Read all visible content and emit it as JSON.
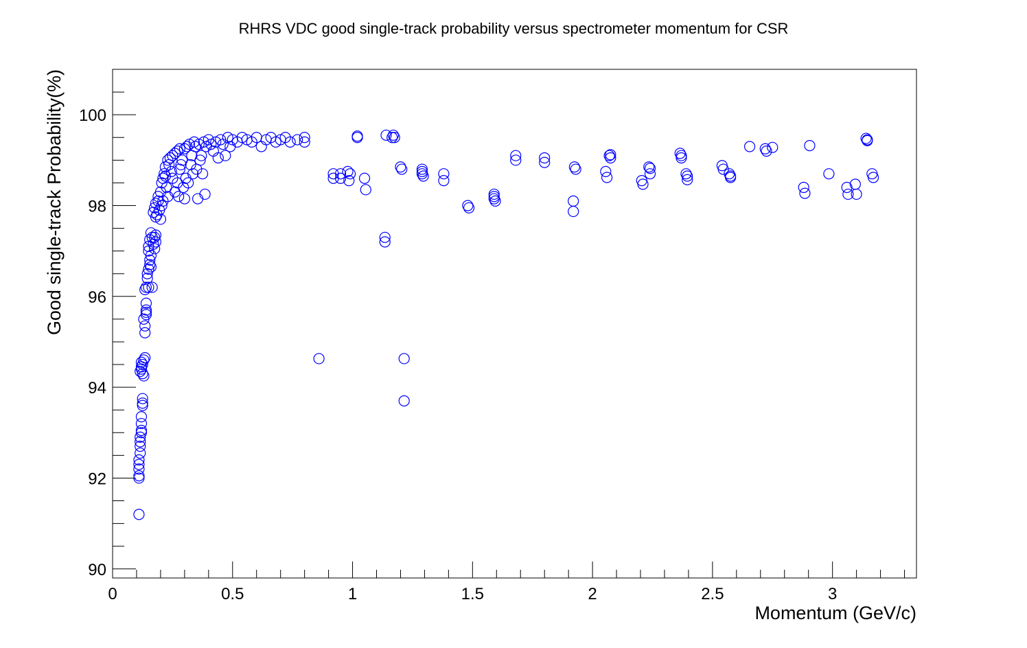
{
  "chart_data": {
    "type": "scatter",
    "title": "RHRS VDC good single-track probability versus spectrometer momentum for CSR",
    "xlabel": "Momentum (GeV/c)",
    "ylabel": "Good single-track Probability(%)",
    "xlim": [
      0,
      3.35
    ],
    "ylim": [
      89.8,
      101.0
    ],
    "x_ticks": [
      0,
      0.5,
      1,
      1.5,
      2,
      2.5,
      3
    ],
    "x_tick_labels": [
      "0",
      "0.5",
      "1",
      "1.5",
      "2",
      "2.5",
      "3"
    ],
    "y_ticks": [
      90,
      92,
      94,
      96,
      98,
      100
    ],
    "y_tick_labels": [
      "90",
      "92",
      "94",
      "96",
      "98",
      "100"
    ],
    "grid": false,
    "legend": "none",
    "marker": "open-circle",
    "color": "#0000ff",
    "points": [
      [
        0.11,
        91.2
      ],
      [
        0.11,
        92.0
      ],
      [
        0.11,
        92.05
      ],
      [
        0.11,
        92.2
      ],
      [
        0.11,
        92.3
      ],
      [
        0.11,
        92.4
      ],
      [
        0.115,
        92.55
      ],
      [
        0.115,
        92.7
      ],
      [
        0.115,
        92.8
      ],
      [
        0.115,
        92.9
      ],
      [
        0.12,
        93.0
      ],
      [
        0.12,
        93.05
      ],
      [
        0.12,
        93.2
      ],
      [
        0.12,
        93.35
      ],
      [
        0.125,
        93.6
      ],
      [
        0.125,
        93.65
      ],
      [
        0.125,
        93.75
      ],
      [
        0.115,
        94.35
      ],
      [
        0.12,
        94.4
      ],
      [
        0.12,
        94.45
      ],
      [
        0.12,
        94.55
      ],
      [
        0.125,
        94.3
      ],
      [
        0.125,
        94.5
      ],
      [
        0.13,
        94.25
      ],
      [
        0.13,
        94.6
      ],
      [
        0.135,
        94.65
      ],
      [
        0.13,
        95.5
      ],
      [
        0.135,
        95.2
      ],
      [
        0.135,
        95.35
      ],
      [
        0.14,
        95.6
      ],
      [
        0.14,
        95.65
      ],
      [
        0.14,
        95.7
      ],
      [
        0.14,
        95.85
      ],
      [
        0.135,
        96.15
      ],
      [
        0.14,
        96.2
      ],
      [
        0.145,
        96.4
      ],
      [
        0.145,
        96.5
      ],
      [
        0.15,
        96.2
      ],
      [
        0.15,
        96.6
      ],
      [
        0.155,
        96.7
      ],
      [
        0.155,
        96.8
      ],
      [
        0.16,
        96.9
      ],
      [
        0.16,
        96.65
      ],
      [
        0.165,
        96.2
      ],
      [
        0.15,
        97.0
      ],
      [
        0.15,
        97.1
      ],
      [
        0.155,
        97.25
      ],
      [
        0.16,
        97.4
      ],
      [
        0.165,
        97.3
      ],
      [
        0.17,
        97.15
      ],
      [
        0.175,
        97.05
      ],
      [
        0.175,
        97.3
      ],
      [
        0.18,
        97.35
      ],
      [
        0.18,
        97.2
      ],
      [
        0.17,
        97.85
      ],
      [
        0.175,
        97.95
      ],
      [
        0.18,
        98.05
      ],
      [
        0.18,
        97.75
      ],
      [
        0.185,
        97.8
      ],
      [
        0.19,
        98.1
      ],
      [
        0.19,
        98.2
      ],
      [
        0.195,
        97.9
      ],
      [
        0.2,
        97.7
      ],
      [
        0.2,
        98.3
      ],
      [
        0.205,
        98.5
      ],
      [
        0.205,
        98.0
      ],
      [
        0.21,
        98.1
      ],
      [
        0.21,
        98.6
      ],
      [
        0.215,
        98.7
      ],
      [
        0.22,
        98.65
      ],
      [
        0.22,
        98.85
      ],
      [
        0.225,
        98.4
      ],
      [
        0.23,
        98.2
      ],
      [
        0.23,
        99.0
      ],
      [
        0.235,
        98.9
      ],
      [
        0.24,
        99.05
      ],
      [
        0.245,
        98.75
      ],
      [
        0.25,
        98.6
      ],
      [
        0.25,
        99.1
      ],
      [
        0.26,
        99.15
      ],
      [
        0.26,
        98.3
      ],
      [
        0.27,
        99.2
      ],
      [
        0.27,
        98.5
      ],
      [
        0.275,
        98.2
      ],
      [
        0.28,
        99.25
      ],
      [
        0.28,
        98.8
      ],
      [
        0.285,
        98.9
      ],
      [
        0.29,
        99.0
      ],
      [
        0.295,
        98.4
      ],
      [
        0.3,
        99.25
      ],
      [
        0.3,
        98.15
      ],
      [
        0.305,
        98.6
      ],
      [
        0.31,
        99.3
      ],
      [
        0.315,
        98.5
      ],
      [
        0.32,
        99.35
      ],
      [
        0.325,
        98.9
      ],
      [
        0.33,
        99.1
      ],
      [
        0.335,
        98.7
      ],
      [
        0.34,
        99.4
      ],
      [
        0.345,
        99.3
      ],
      [
        0.35,
        98.8
      ],
      [
        0.355,
        98.15
      ],
      [
        0.36,
        99.35
      ],
      [
        0.365,
        99.0
      ],
      [
        0.37,
        99.1
      ],
      [
        0.375,
        98.7
      ],
      [
        0.38,
        99.4
      ],
      [
        0.385,
        98.25
      ],
      [
        0.39,
        99.3
      ],
      [
        0.4,
        99.45
      ],
      [
        0.41,
        99.35
      ],
      [
        0.42,
        99.2
      ],
      [
        0.43,
        99.4
      ],
      [
        0.44,
        99.05
      ],
      [
        0.45,
        99.45
      ],
      [
        0.46,
        99.35
      ],
      [
        0.47,
        99.1
      ],
      [
        0.48,
        99.5
      ],
      [
        0.49,
        99.3
      ],
      [
        0.5,
        99.45
      ],
      [
        0.52,
        99.4
      ],
      [
        0.54,
        99.5
      ],
      [
        0.56,
        99.45
      ],
      [
        0.58,
        99.4
      ],
      [
        0.6,
        99.5
      ],
      [
        0.62,
        99.3
      ],
      [
        0.64,
        99.45
      ],
      [
        0.66,
        99.5
      ],
      [
        0.68,
        99.4
      ],
      [
        0.7,
        99.45
      ],
      [
        0.72,
        99.5
      ],
      [
        0.74,
        99.4
      ],
      [
        0.77,
        99.45
      ],
      [
        0.8,
        99.5
      ],
      [
        0.8,
        99.4
      ],
      [
        0.86,
        94.63
      ],
      [
        0.92,
        98.7
      ],
      [
        0.92,
        98.6
      ],
      [
        0.95,
        98.7
      ],
      [
        0.95,
        98.6
      ],
      [
        0.98,
        98.75
      ],
      [
        0.985,
        98.55
      ],
      [
        0.99,
        98.7
      ],
      [
        1.02,
        99.5
      ],
      [
        1.02,
        99.53
      ],
      [
        1.05,
        98.6
      ],
      [
        1.055,
        98.35
      ],
      [
        1.135,
        97.3
      ],
      [
        1.135,
        97.2
      ],
      [
        1.14,
        99.55
      ],
      [
        1.165,
        99.5
      ],
      [
        1.17,
        99.55
      ],
      [
        1.175,
        99.5
      ],
      [
        1.2,
        98.85
      ],
      [
        1.205,
        98.8
      ],
      [
        1.215,
        94.63
      ],
      [
        1.215,
        93.7
      ],
      [
        1.29,
        98.8
      ],
      [
        1.29,
        98.75
      ],
      [
        1.29,
        98.7
      ],
      [
        1.295,
        98.65
      ],
      [
        1.38,
        98.7
      ],
      [
        1.38,
        98.55
      ],
      [
        1.48,
        98.0
      ],
      [
        1.485,
        97.95
      ],
      [
        1.59,
        98.25
      ],
      [
        1.59,
        98.2
      ],
      [
        1.59,
        98.15
      ],
      [
        1.595,
        98.1
      ],
      [
        1.68,
        99.1
      ],
      [
        1.68,
        99.0
      ],
      [
        1.8,
        99.05
      ],
      [
        1.8,
        98.95
      ],
      [
        1.92,
        98.1
      ],
      [
        1.92,
        97.87
      ],
      [
        1.925,
        98.85
      ],
      [
        1.93,
        98.8
      ],
      [
        2.055,
        98.75
      ],
      [
        2.06,
        98.62
      ],
      [
        2.07,
        99.1
      ],
      [
        2.075,
        99.12
      ],
      [
        2.075,
        99.05
      ],
      [
        2.205,
        98.55
      ],
      [
        2.21,
        98.47
      ],
      [
        2.235,
        98.85
      ],
      [
        2.24,
        98.82
      ],
      [
        2.24,
        98.7
      ],
      [
        2.365,
        99.15
      ],
      [
        2.37,
        99.1
      ],
      [
        2.37,
        99.05
      ],
      [
        2.39,
        98.7
      ],
      [
        2.395,
        98.65
      ],
      [
        2.395,
        98.57
      ],
      [
        2.54,
        98.88
      ],
      [
        2.545,
        98.8
      ],
      [
        2.57,
        98.7
      ],
      [
        2.575,
        98.65
      ],
      [
        2.575,
        98.62
      ],
      [
        2.655,
        99.3
      ],
      [
        2.72,
        99.25
      ],
      [
        2.725,
        99.2
      ],
      [
        2.75,
        99.28
      ],
      [
        2.88,
        98.4
      ],
      [
        2.885,
        98.27
      ],
      [
        2.905,
        99.32
      ],
      [
        2.985,
        98.7
      ],
      [
        3.06,
        98.4
      ],
      [
        3.065,
        98.25
      ],
      [
        3.095,
        98.47
      ],
      [
        3.1,
        98.25
      ],
      [
        3.14,
        99.48
      ],
      [
        3.145,
        99.45
      ],
      [
        3.145,
        99.43
      ],
      [
        3.165,
        98.7
      ],
      [
        3.17,
        98.62
      ]
    ]
  }
}
